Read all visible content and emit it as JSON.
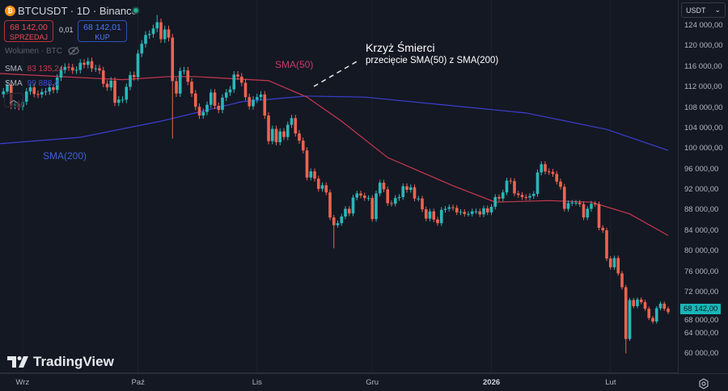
{
  "header": {
    "title": "BTCUSDT · 1D · Binance",
    "coin_icon": "bitcoin-icon",
    "market_status": "open",
    "sell": {
      "price": "68 142,00",
      "label": "SPRZEDAJ"
    },
    "spread": "0,01",
    "buy": {
      "price": "68 142,01",
      "label": "KUP"
    },
    "volume_label": "Wolumen · BTC",
    "indicators": [
      {
        "name": "SMA",
        "value": "83 135,24",
        "color": "#c73a4f"
      },
      {
        "name": "SMA",
        "value": "99 888,4",
        "color": "#3d4fd6"
      }
    ]
  },
  "currency_select": "USDT",
  "last_price": "68 142,00",
  "colors": {
    "up": "#2ab7b9",
    "down": "#ef6350",
    "sma50": "#c8384f",
    "sma200": "#3b3fd0",
    "background": "#141823"
  },
  "annotations": {
    "sma50_label": "SMA(50)",
    "sma200_label": "SMA(200)",
    "cross_title": "Krzyż Śmierci",
    "cross_subtitle": "przecięcie SMA(50) z SMA(200)"
  },
  "branding": "TradingView",
  "chart_data": {
    "type": "candlestick",
    "symbol": "BTCUSDT",
    "interval": "1D",
    "y_ticks": [
      "124 000,00",
      "120 000,00",
      "116 000,00",
      "112 000,00",
      "108 000,00",
      "104 000,00",
      "100 000,00",
      "96 000,00",
      "92 000,00",
      "88 000,00",
      "84 000,00",
      "80 000,00",
      "76 000,00",
      "72 000,00",
      "68 000,00",
      "64 000,00",
      "60 000,00"
    ],
    "ylim": [
      58000,
      129000
    ],
    "x_ticks": [
      {
        "label": "Wrz",
        "date": "2025-09-01"
      },
      {
        "label": "Paź",
        "date": "2025-10-01"
      },
      {
        "label": "Lis",
        "date": "2025-11-01"
      },
      {
        "label": "Gru",
        "date": "2025-12-01"
      },
      {
        "label": "2026",
        "date": "2026-01-01",
        "bold": true
      },
      {
        "label": "Lut",
        "date": "2026-02-01"
      }
    ],
    "daily_close": [
      {
        "month": "2025-08",
        "from_day": 27,
        "close": [
          111200,
          112500,
          108400,
          108800,
          108200
        ]
      },
      {
        "month": "2025-09",
        "from_day": 1,
        "close": [
          109200,
          111200,
          112000,
          110700,
          110600,
          111100,
          111200,
          112000,
          111500,
          113900,
          115400,
          116000,
          115900,
          115300,
          115400,
          116800,
          116400,
          117100,
          115700,
          115700,
          115300,
          112700,
          112000,
          113300,
          109000,
          109600,
          109600,
          112100,
          114400,
          114000
        ]
      },
      {
        "month": "2025-10",
        "from_day": 1,
        "close": [
          118600,
          120500,
          122200,
          122400,
          123500,
          124700,
          121400,
          123300,
          121700,
          113200,
          110800,
          115200,
          115300,
          113100,
          110800,
          108200,
          106500,
          107200,
          108600,
          111000,
          108400,
          107600,
          110000,
          111000,
          111600,
          114500,
          114100,
          112900,
          110100,
          108300,
          109600
        ]
      },
      {
        "month": "2025-11",
        "from_day": 1,
        "close": [
          110100,
          110600,
          106500,
          101500,
          103900,
          101300,
          103400,
          102300,
          104700,
          106000,
          103000,
          101600,
          99700,
          94400,
          95600,
          94200,
          92200,
          92900,
          91500,
          86600,
          85100,
          85500,
          86800,
          88300,
          87400,
          90500,
          91300,
          90900,
          90400,
          90400
        ]
      },
      {
        "month": "2025-12",
        "from_day": 1,
        "close": [
          86300,
          91300,
          93400,
          92100,
          89400,
          89300,
          90400,
          90600,
          92700,
          92000,
          92500,
          90300,
          90300,
          88200,
          86400,
          87800,
          86200,
          85500,
          88100,
          88300,
          88600,
          88500,
          87600,
          87700,
          87300,
          87300,
          87800,
          87800,
          87200,
          88400,
          87600
        ]
      },
      {
        "month": "2026-01",
        "from_day": 1,
        "close": [
          88700,
          90600,
          90300,
          91500,
          93800,
          93700,
          91300,
          91000,
          90600,
          90500,
          90800,
          91200,
          95400,
          97000,
          95600,
          95500,
          95100,
          93600,
          92600,
          88300,
          89400,
          89500,
          89500,
          89200,
          86600,
          88300,
          89300,
          89200,
          84600,
          84100,
          78600
        ]
      },
      {
        "month": "2026-02",
        "from_day": 1,
        "close": [
          76900,
          78700,
          75700,
          73000,
          62900,
          70500,
          69300,
          70600,
          70100,
          68800,
          67000,
          66300,
          68900,
          69800,
          68800,
          68142
        ]
      }
    ],
    "notable_extremes": [
      {
        "date": "2025-10-06",
        "high": 126100
      },
      {
        "date": "2025-10-10",
        "low": 102000
      },
      {
        "date": "2025-11-21",
        "low": 80600
      },
      {
        "date": "2026-02-05",
        "low": 60100
      }
    ],
    "series": [
      {
        "name": "SMA(50)",
        "points": [
          [
            "2025-08-26",
            114700
          ],
          [
            "2025-09-27",
            113500
          ],
          [
            "2025-10-09",
            114100
          ],
          [
            "2025-10-16",
            114100
          ],
          [
            "2025-11-04",
            113300
          ],
          [
            "2025-11-14",
            110100
          ],
          [
            "2025-11-23",
            105400
          ],
          [
            "2025-12-05",
            98300
          ],
          [
            "2025-12-22",
            92800
          ],
          [
            "2026-01-02",
            89600
          ],
          [
            "2026-01-16",
            89900
          ],
          [
            "2026-01-27",
            89600
          ],
          [
            "2026-02-06",
            87300
          ],
          [
            "2026-02-16",
            83100
          ]
        ]
      },
      {
        "name": "SMA(200)",
        "points": [
          [
            "2025-08-26",
            101000
          ],
          [
            "2025-09-16",
            102250
          ],
          [
            "2025-10-07",
            105400
          ],
          [
            "2025-10-28",
            109200
          ],
          [
            "2025-11-14",
            110300
          ],
          [
            "2025-11-29",
            110100
          ],
          [
            "2025-12-20",
            108550
          ],
          [
            "2026-01-10",
            107000
          ],
          [
            "2026-01-31",
            103800
          ],
          [
            "2026-02-16",
            99700
          ]
        ]
      }
    ]
  }
}
